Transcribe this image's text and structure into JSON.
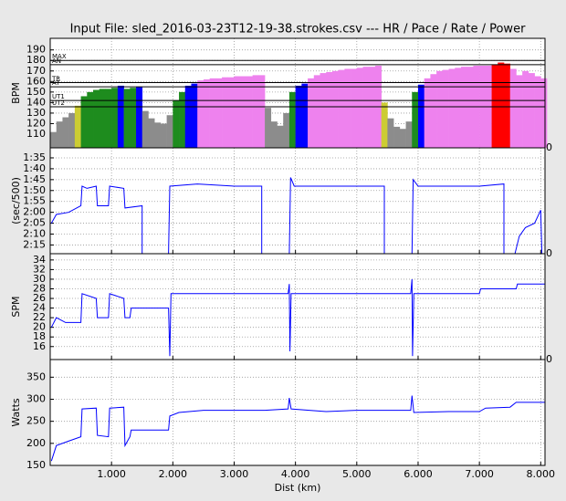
{
  "chart_data": [
    {
      "type": "bar",
      "title": "Input File:  sled_2016-03-23T12-19-38.strokes.csv --- HR / Pace / Rate / Power",
      "ylabel": "BPM",
      "corner_label": "0",
      "xlim": [
        0,
        8.07
      ],
      "xticks": [
        1,
        2,
        3,
        4,
        5,
        6,
        7,
        8
      ],
      "ylim": [
        97,
        201
      ],
      "yticks": [
        110,
        120,
        130,
        140,
        150,
        160,
        170,
        180,
        190
      ],
      "grid": true,
      "zones": [
        {
          "label": "UT2",
          "value": 136
        },
        {
          "label": "UT1",
          "value": 142
        },
        {
          "label": "AT",
          "value": 155
        },
        {
          "label": "TR",
          "value": 159
        },
        {
          "label": "AN",
          "value": 176
        },
        {
          "label": "MAX",
          "value": 180
        }
      ],
      "band_colors": [
        "#8c8c8c",
        "#cccc33",
        "#1e8c1e",
        "#0000ff",
        "#ee82ee",
        "#ff0000"
      ],
      "x": [
        0.05,
        0.15,
        0.25,
        0.35,
        0.45,
        0.55,
        0.65,
        0.75,
        0.85,
        0.95,
        1.05,
        1.15,
        1.25,
        1.35,
        1.45,
        1.55,
        1.65,
        1.75,
        1.85,
        1.95,
        2.05,
        2.15,
        2.25,
        2.35,
        2.45,
        2.55,
        2.65,
        2.75,
        2.85,
        2.95,
        3.05,
        3.15,
        3.25,
        3.35,
        3.45,
        3.55,
        3.65,
        3.75,
        3.85,
        3.95,
        4.05,
        4.15,
        4.25,
        4.35,
        4.45,
        4.55,
        4.65,
        4.75,
        4.85,
        4.95,
        5.05,
        5.15,
        5.25,
        5.35,
        5.45,
        5.55,
        5.65,
        5.75,
        5.85,
        5.95,
        6.05,
        6.15,
        6.25,
        6.35,
        6.45,
        6.55,
        6.65,
        6.75,
        6.85,
        6.95,
        7.05,
        7.15,
        7.25,
        7.35,
        7.45,
        7.55,
        7.65,
        7.75,
        7.85,
        7.95,
        8.05
      ],
      "values": [
        112,
        122,
        126,
        130,
        137,
        146,
        150,
        152,
        153,
        153,
        154,
        156,
        153,
        154,
        155,
        132,
        125,
        121,
        120,
        128,
        142,
        150,
        156,
        158,
        161,
        162,
        163,
        163,
        164,
        164,
        165,
        165,
        165,
        166,
        166,
        135,
        122,
        118,
        130,
        150,
        156,
        158,
        163,
        166,
        168,
        169,
        170,
        171,
        172,
        172,
        173,
        174,
        174,
        175,
        140,
        125,
        117,
        115,
        122,
        150,
        157,
        163,
        167,
        170,
        171,
        172,
        173,
        174,
        174,
        175,
        175,
        175,
        176,
        178,
        177,
        172,
        166,
        170,
        168,
        165,
        163
      ]
    },
    {
      "type": "line",
      "ylabel": "(sec/500)",
      "corner_label": "0",
      "color": "#0000ff",
      "xlim": [
        0,
        8.07
      ],
      "xticks": [
        1,
        2,
        3,
        4,
        5,
        6,
        7,
        8
      ],
      "ylim": [
        139,
        90.4
      ],
      "yticks": [
        {
          "value": 95,
          "label": "1:35"
        },
        {
          "value": 100,
          "label": "1:40"
        },
        {
          "value": 105,
          "label": "1:45"
        },
        {
          "value": 110,
          "label": "1:50"
        },
        {
          "value": 115,
          "label": "1:55"
        },
        {
          "value": 120,
          "label": "2:00"
        },
        {
          "value": 125,
          "label": "2:05"
        },
        {
          "value": 130,
          "label": "2:10"
        },
        {
          "value": 135,
          "label": "2:15"
        }
      ],
      "grid": true,
      "x": [
        0.02,
        0.1,
        0.3,
        0.5,
        0.52,
        0.6,
        0.75,
        0.77,
        0.95,
        0.97,
        1.2,
        1.22,
        1.5,
        1.5,
        1.7,
        1.93,
        1.95,
        2.4,
        3.0,
        3.45,
        3.45,
        3.7,
        3.9,
        3.92,
        3.98,
        4.5,
        5.0,
        5.45,
        5.45,
        5.7,
        5.9,
        5.92,
        6.0,
        6.5,
        7.0,
        7.4,
        7.4,
        7.5,
        7.58,
        7.65,
        7.75,
        7.9,
        8.0,
        8.02
      ],
      "values": [
        125,
        121,
        120,
        117,
        108,
        109,
        108,
        117,
        117,
        108,
        109,
        118,
        117,
        139,
        null,
        139,
        108,
        107,
        108,
        108,
        139,
        null,
        139,
        104,
        108,
        108,
        108,
        108,
        139,
        null,
        139,
        105,
        108,
        108,
        108,
        107,
        139,
        null,
        139,
        131,
        127,
        125,
        119,
        139
      ]
    },
    {
      "type": "line",
      "ylabel": "SPM",
      "corner_label": "0",
      "color": "#0000ff",
      "xlim": [
        0,
        8.07
      ],
      "xticks": [
        1,
        2,
        3,
        4,
        5,
        6,
        7,
        8
      ],
      "ylim": [
        13.3,
        35.3
      ],
      "yticks": [
        16,
        18,
        20,
        22,
        24,
        26,
        28,
        30,
        32,
        34
      ],
      "grid": true,
      "x": [
        0.02,
        0.1,
        0.25,
        0.5,
        0.52,
        0.75,
        0.77,
        0.95,
        0.97,
        1.2,
        1.22,
        1.3,
        1.32,
        1.93,
        1.95,
        1.97,
        2.5,
        3.0,
        3.88,
        3.9,
        3.91,
        3.93,
        4.5,
        5.0,
        5.88,
        5.9,
        5.91,
        5.93,
        6.5,
        7.0,
        7.02,
        7.6,
        7.62,
        8.07
      ],
      "values": [
        20,
        22,
        21,
        21,
        27,
        26,
        22,
        22,
        27,
        26,
        22,
        22,
        24,
        24,
        14,
        27,
        27,
        27,
        27,
        29,
        15,
        27,
        27,
        27,
        27,
        30,
        14,
        27,
        27,
        27,
        28,
        28,
        29,
        29
      ]
    },
    {
      "type": "line",
      "ylabel": "Watts",
      "xlabel": "Dist (km)",
      "color": "#0000ff",
      "xlim": [
        0,
        8.07
      ],
      "xticks": [
        {
          "value": 1,
          "label": "1.000"
        },
        {
          "value": 2,
          "label": "2.000"
        },
        {
          "value": 3,
          "label": "3.000"
        },
        {
          "value": 4,
          "label": "4.000"
        },
        {
          "value": 5,
          "label": "5.000"
        },
        {
          "value": 6,
          "label": "6.000"
        },
        {
          "value": 7,
          "label": "7.000"
        },
        {
          "value": 8,
          "label": "8.000"
        }
      ],
      "ylim": [
        150,
        390
      ],
      "yticks": [
        150,
        200,
        250,
        300,
        350
      ],
      "grid": true,
      "x": [
        0.02,
        0.1,
        0.3,
        0.5,
        0.52,
        0.75,
        0.77,
        0.95,
        0.97,
        1.2,
        1.22,
        1.3,
        1.32,
        1.93,
        1.95,
        2.1,
        2.5,
        3.0,
        3.5,
        3.88,
        3.9,
        3.93,
        4.5,
        5.0,
        5.5,
        5.88,
        5.9,
        5.93,
        6.5,
        7.0,
        7.1,
        7.5,
        7.6,
        8.07
      ],
      "values": [
        160,
        195,
        205,
        215,
        278,
        280,
        218,
        215,
        280,
        282,
        195,
        215,
        230,
        230,
        262,
        270,
        275,
        275,
        275,
        278,
        303,
        278,
        272,
        275,
        275,
        275,
        308,
        270,
        272,
        272,
        280,
        282,
        293,
        293
      ]
    }
  ]
}
